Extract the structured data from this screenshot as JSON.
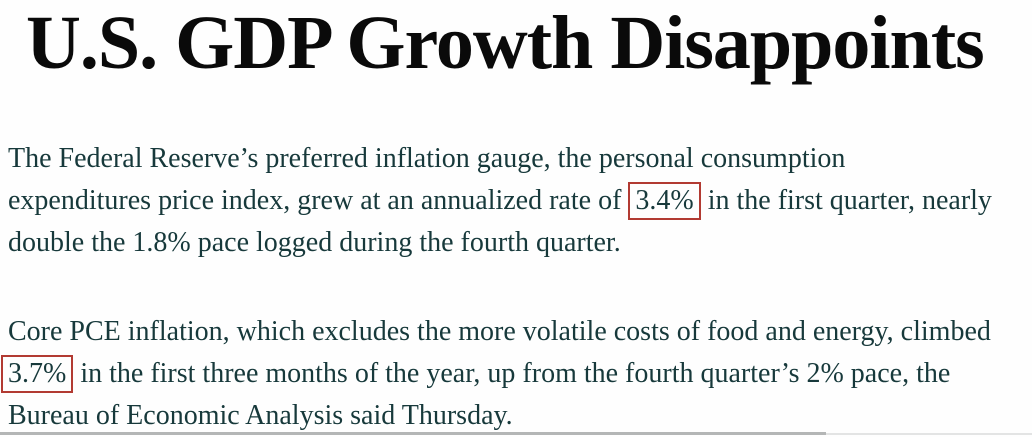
{
  "headline": "U.S. GDP Growth Disappoints",
  "article": {
    "text_color": "#17393b",
    "headline_color": "#0a0a0a",
    "highlight_box_color": "#b23a32",
    "highlighted_values": [
      "3.4%",
      "3.7%"
    ],
    "paragraphs": [
      {
        "lines": [
          {
            "pre": "The Federal Reserve’s preferred inflation gauge, the personal consumption"
          },
          {
            "pre": "expenditures price index, grew at an annualized rate of ",
            "boxed": "3.4%",
            "post": " in the first quarter, nearly"
          },
          {
            "pre": "double the 1.8% pace logged during the fourth quarter."
          }
        ]
      },
      {
        "lines": [
          {
            "pre": "Core PCE inflation, which excludes the more volatile costs of food and energy, climbed"
          },
          {
            "boxed": "3.7%",
            "post": " in the first three months of the year, up from the fourth quarter’s 2% pace, the"
          },
          {
            "pre": "Bureau of Economic Analysis said Thursday."
          }
        ]
      }
    ]
  }
}
